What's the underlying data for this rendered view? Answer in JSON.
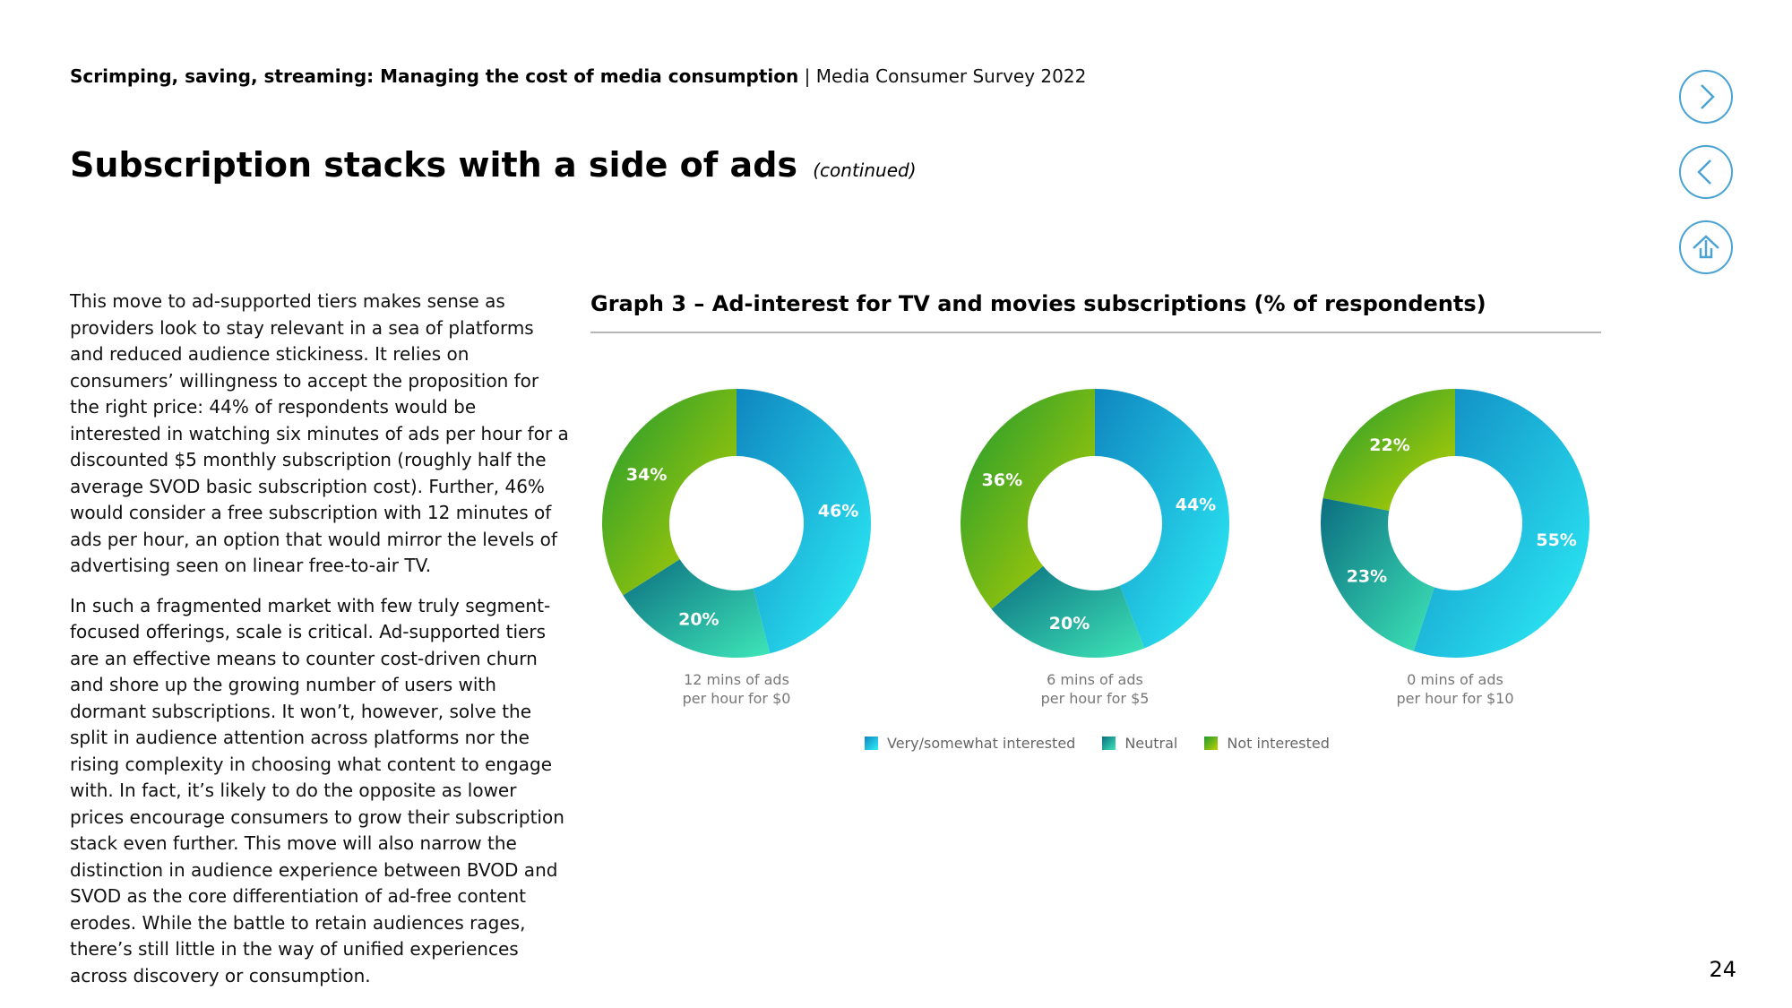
{
  "header": {
    "report_title": "Scrimping, saving, streaming: Managing the cost of media consumption",
    "separator": " | ",
    "report_subtitle": "Media Consumer Survey 2022"
  },
  "page": {
    "title": "Subscription stacks with a side of ads",
    "continued": "(continued)",
    "number": "24"
  },
  "nav": {
    "next_icon": "chevron-right-icon",
    "prev_icon": "chevron-left-icon",
    "home_icon": "home-arrow-icon",
    "accent": "#4ba3d3"
  },
  "body": {
    "paragraph_1": "This move to ad-supported tiers makes sense as providers look to stay relevant in a sea of platforms and reduced audience stickiness. It relies on consumers’ willingness to accept the proposition for the right price: 44% of respondents would be interested in watching six minutes of ads per hour for a discounted $5 monthly subscription (roughly half the average SVOD basic subscription cost). Further, 46% would consider a free subscription with 12 minutes of ads per hour, an option that would mirror the levels of advertising seen on linear free-to-air TV.",
    "paragraph_2": "In such a fragmented market with few truly segment-focused offerings, scale is critical. Ad-supported tiers are an effective means to counter cost-driven churn and shore up the growing number of users with dormant subscriptions. It won’t, however, solve the split in audience attention across platforms nor the rising complexity in choosing what content to engage with. In fact, it’s likely to do the opposite as lower prices encourage consumers to grow their subscription stack even further. This move will also narrow the distinction in audience experience between BVOD and SVOD as the core differentiation of ad-free content erodes. While the battle to retain audiences rages, there’s still little in the way of unified experiences across discovery or consumption."
  },
  "graph": {
    "title": "Graph 3 – Ad-interest for TV and movies subscriptions (% of respondents)"
  },
  "chart_data": {
    "type": "pie",
    "variant": "donut",
    "title": "Graph 3 – Ad-interest for TV and movies subscriptions (% of respondents)",
    "legend_position": "bottom",
    "series": [
      {
        "name": "Very/somewhat interested",
        "color": "#1aa6d6",
        "gradient": [
          "#0f86c0",
          "#2ef0f8"
        ]
      },
      {
        "name": "Neutral",
        "color": "#15a09a",
        "gradient": [
          "#0b6e80",
          "#3ee6b8"
        ]
      },
      {
        "name": "Not interested",
        "color": "#4caf2a",
        "gradient": [
          "#1e9a30",
          "#bed200"
        ]
      }
    ],
    "charts": [
      {
        "caption_line1": "12 mins of ads",
        "caption_line2": "per hour for $0",
        "values": [
          46,
          20,
          34
        ],
        "labels": [
          "46%",
          "20%",
          "34%"
        ]
      },
      {
        "caption_line1": "6 mins of ads",
        "caption_line2": "per hour for $5",
        "values": [
          44,
          20,
          36
        ],
        "labels": [
          "44%",
          "20%",
          "36%"
        ]
      },
      {
        "caption_line1": "0 mins of ads",
        "caption_line2": "per hour for $10",
        "values": [
          55,
          23,
          22
        ],
        "labels": [
          "55%",
          "23%",
          "22%"
        ]
      }
    ]
  }
}
